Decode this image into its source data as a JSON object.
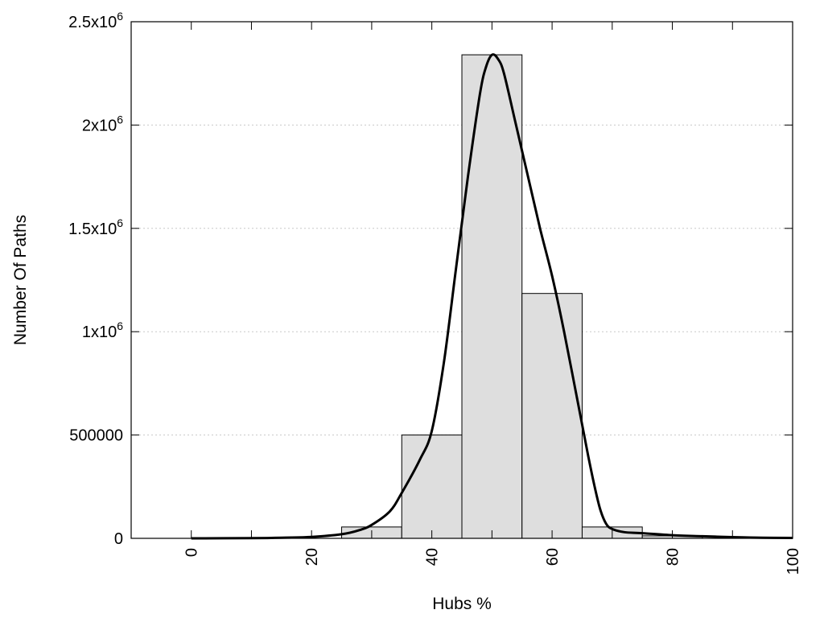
{
  "chart_data": {
    "type": "bar",
    "xlabel": "Hubs %",
    "ylabel": "Number Of Paths",
    "xlim": [
      -10,
      100
    ],
    "ylim": [
      0,
      2500000
    ],
    "grid": "horizontal dotted",
    "x_ticks": [
      {
        "value": 0,
        "label": "0"
      },
      {
        "value": 20,
        "label": "20"
      },
      {
        "value": 40,
        "label": "40"
      },
      {
        "value": 60,
        "label": "60"
      },
      {
        "value": 80,
        "label": "80"
      },
      {
        "value": 100,
        "label": "100"
      }
    ],
    "x_minor_ticks": [
      10,
      30,
      50,
      70,
      90
    ],
    "y_ticks": [
      {
        "value": 0,
        "base": "0",
        "exp": ""
      },
      {
        "value": 500000,
        "base": "500000",
        "exp": ""
      },
      {
        "value": 1000000,
        "base": "1x10",
        "exp": "6"
      },
      {
        "value": 1500000,
        "base": "1.5x10",
        "exp": "6"
      },
      {
        "value": 2000000,
        "base": "2x10",
        "exp": "6"
      },
      {
        "value": 2500000,
        "base": "2.5x10",
        "exp": "6"
      }
    ],
    "bars": [
      {
        "x0": 25,
        "x1": 35,
        "value": 55000
      },
      {
        "x0": 35,
        "x1": 45,
        "value": 500000
      },
      {
        "x0": 45,
        "x1": 55,
        "value": 2340000
      },
      {
        "x0": 55,
        "x1": 65,
        "value": 1185000
      },
      {
        "x0": 65,
        "x1": 75,
        "value": 55000
      },
      {
        "x0": 75,
        "x1": 85,
        "value": 12000
      }
    ],
    "curve": {
      "x": [
        0,
        10,
        15,
        20,
        25,
        28,
        30,
        33,
        35,
        38,
        40,
        42,
        44,
        46,
        48,
        49,
        50,
        51,
        52,
        54,
        56,
        58,
        60,
        62,
        64,
        66,
        67,
        68,
        69,
        70,
        72,
        75,
        80,
        85,
        90,
        95,
        100
      ],
      "y": [
        0,
        1000,
        3000,
        7000,
        20000,
        40000,
        65000,
        130000,
        220000,
        380000,
        520000,
        850000,
        1300000,
        1750000,
        2150000,
        2280000,
        2340000,
        2320000,
        2250000,
        2000000,
        1750000,
        1500000,
        1270000,
        1000000,
        700000,
        400000,
        260000,
        140000,
        70000,
        45000,
        30000,
        25000,
        15000,
        10000,
        6000,
        3000,
        2000
      ]
    }
  }
}
